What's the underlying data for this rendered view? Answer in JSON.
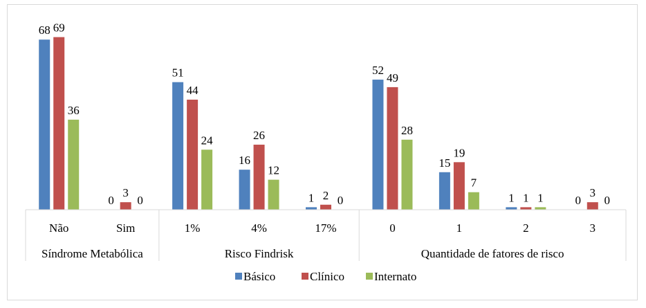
{
  "chart_data": {
    "type": "bar",
    "title": "",
    "xlabel": "",
    "ylabel": "",
    "ylim": [
      0,
      70
    ],
    "grid": false,
    "legend_position": "bottom",
    "groups": [
      {
        "label": "Síndrome Metabólica",
        "categories": [
          "Não",
          "Sim"
        ]
      },
      {
        "label": "Risco Findrisk",
        "categories": [
          "1%",
          "4%",
          "17%"
        ]
      },
      {
        "label": "Quantidade de fatores de risco",
        "categories": [
          "0",
          "1",
          "2",
          "3"
        ]
      }
    ],
    "categories": [
      "Não",
      "Sim",
      "1%",
      "4%",
      "17%",
      "0",
      "1",
      "2",
      "3"
    ],
    "series": [
      {
        "name": "Básico",
        "color": "#4f81bd",
        "values": [
          68,
          0,
          51,
          16,
          1,
          52,
          15,
          1,
          0
        ]
      },
      {
        "name": "Clínico",
        "color": "#c0504d",
        "values": [
          69,
          3,
          44,
          26,
          2,
          49,
          19,
          1,
          3
        ]
      },
      {
        "name": "Internato",
        "color": "#9bbb59",
        "values": [
          36,
          0,
          24,
          12,
          0,
          28,
          7,
          1,
          0
        ]
      }
    ]
  }
}
